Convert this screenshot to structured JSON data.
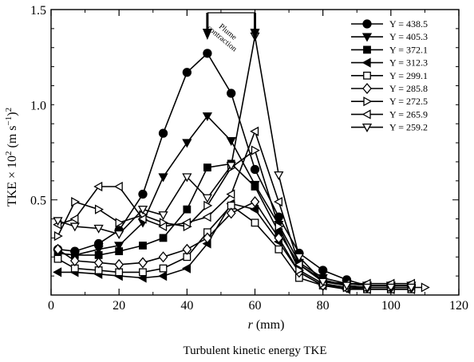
{
  "chart_data": {
    "type": "line",
    "caption": "Turbulent kinetic energy TKE",
    "xlabel": {
      "var": "r",
      "unit": " (mm)"
    },
    "ylabel": {
      "main": "TKE × 10",
      "exp1": "2",
      "unit_open": " (m s",
      "exp2": "−1",
      "unit_close": ")",
      "exp3": "2"
    },
    "xlim": [
      0,
      120
    ],
    "ylim": [
      0,
      1.5
    ],
    "xticks": [
      0,
      20,
      40,
      60,
      80,
      100,
      120
    ],
    "yticks": [
      0.5,
      1.0,
      1.5
    ],
    "ytick_labels": [
      "0.5",
      "1.0",
      "1.5"
    ],
    "annotation": {
      "line1": "Plume",
      "line2": "contraction",
      "arrow_x": [
        46,
        60
      ]
    },
    "legend_position": "top-right",
    "series": [
      {
        "name": "Y = 438.5",
        "marker": "circle-filled",
        "x": [
          2,
          7,
          14,
          20,
          27,
          33,
          40,
          46,
          53,
          60,
          67,
          73,
          80,
          87,
          93,
          100,
          106
        ],
        "y": [
          0.24,
          0.23,
          0.27,
          0.34,
          0.53,
          0.85,
          1.17,
          1.27,
          1.06,
          0.66,
          0.41,
          0.22,
          0.13,
          0.08,
          0.05,
          0.05,
          0.05
        ]
      },
      {
        "name": "Y = 405.3",
        "marker": "triangle-down-filled",
        "x": [
          2,
          7,
          14,
          20,
          27,
          33,
          40,
          46,
          53,
          60,
          67,
          73,
          80,
          87,
          93,
          100,
          106
        ],
        "y": [
          0.22,
          0.21,
          0.24,
          0.26,
          0.38,
          0.62,
          0.8,
          0.94,
          0.81,
          0.58,
          0.37,
          0.17,
          0.09,
          0.06,
          0.05,
          0.05,
          0.05
        ]
      },
      {
        "name": "Y = 372.1",
        "marker": "square-filled",
        "x": [
          2,
          7,
          14,
          20,
          27,
          33,
          40,
          46,
          53,
          60,
          67,
          73,
          80,
          87,
          93,
          100,
          106
        ],
        "y": [
          0.22,
          0.21,
          0.21,
          0.23,
          0.26,
          0.3,
          0.45,
          0.67,
          0.69,
          0.57,
          0.33,
          0.16,
          0.08,
          0.05,
          0.04,
          0.04,
          0.04
        ]
      },
      {
        "name": "Y = 312.3",
        "marker": "triangle-left-filled",
        "x": [
          2,
          7,
          14,
          20,
          27,
          33,
          40,
          46,
          53,
          60,
          67,
          73,
          80,
          87,
          93,
          100,
          106
        ],
        "y": [
          0.12,
          0.12,
          0.11,
          0.1,
          0.09,
          0.1,
          0.14,
          0.27,
          0.48,
          0.45,
          0.28,
          0.12,
          0.05,
          0.03,
          0.03,
          0.03,
          0.03
        ]
      },
      {
        "name": "Y = 299.1",
        "marker": "square-open",
        "x": [
          2,
          7,
          14,
          20,
          27,
          33,
          40,
          46,
          53,
          60,
          67,
          73,
          80,
          87,
          93,
          100,
          106
        ],
        "y": [
          0.19,
          0.14,
          0.13,
          0.12,
          0.12,
          0.14,
          0.2,
          0.33,
          0.47,
          0.38,
          0.24,
          0.09,
          0.05,
          0.04,
          0.03,
          0.03,
          0.03
        ]
      },
      {
        "name": "Y = 285.8",
        "marker": "diamond-open",
        "x": [
          2,
          7,
          14,
          20,
          27,
          33,
          40,
          46,
          53,
          60,
          67,
          73,
          80,
          87,
          93,
          100,
          106
        ],
        "y": [
          0.24,
          0.18,
          0.17,
          0.16,
          0.17,
          0.2,
          0.24,
          0.3,
          0.43,
          0.49,
          0.3,
          0.12,
          0.05,
          0.04,
          0.04,
          0.04,
          0.04
        ]
      },
      {
        "name": "Y = 272.5",
        "marker": "triangle-right-open",
        "x": [
          2,
          7,
          14,
          20,
          27,
          33,
          40,
          46,
          53,
          60,
          67,
          73,
          80,
          87,
          93,
          100,
          106,
          110
        ],
        "y": [
          0.31,
          0.49,
          0.45,
          0.38,
          0.42,
          0.38,
          0.36,
          0.47,
          0.67,
          0.76,
          0.36,
          0.13,
          0.06,
          0.04,
          0.04,
          0.04,
          0.04,
          0.04
        ]
      },
      {
        "name": "Y = 265.9",
        "marker": "triangle-left-open",
        "x": [
          2,
          7,
          14,
          20,
          27,
          33,
          40,
          46,
          53,
          60,
          67,
          73,
          80,
          87,
          93,
          100,
          106
        ],
        "y": [
          0.37,
          0.4,
          0.57,
          0.57,
          0.4,
          0.36,
          0.38,
          0.41,
          0.53,
          0.86,
          0.49,
          0.16,
          0.07,
          0.06,
          0.06,
          0.06,
          0.06
        ]
      },
      {
        "name": "Y = 259.2",
        "marker": "triangle-down-open",
        "x": [
          2,
          7,
          14,
          20,
          27,
          33,
          40,
          46,
          53,
          60,
          67,
          73,
          80,
          87,
          93,
          100,
          106
        ],
        "y": [
          0.39,
          0.36,
          0.35,
          0.32,
          0.45,
          0.42,
          0.62,
          0.51,
          0.68,
          1.36,
          0.63,
          0.2,
          0.07,
          0.05,
          0.04,
          0.04,
          0.04
        ]
      }
    ]
  }
}
